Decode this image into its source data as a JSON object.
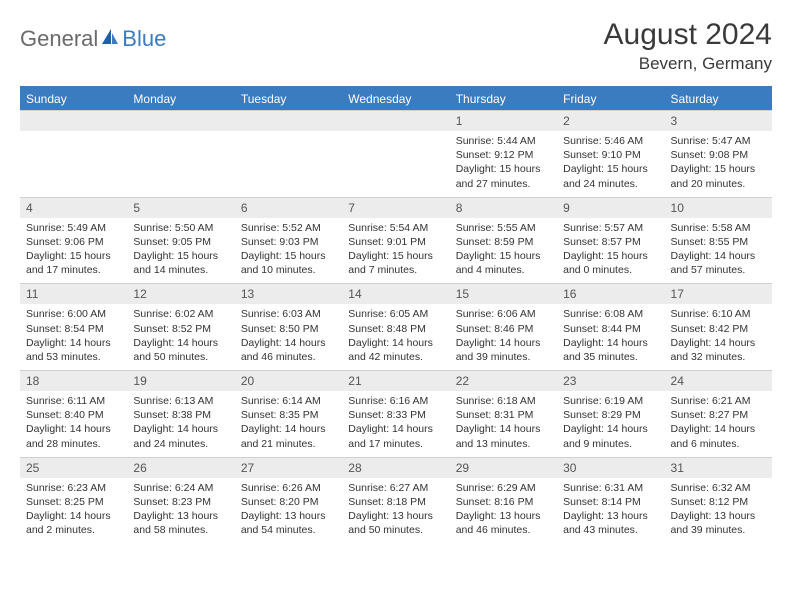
{
  "brand": {
    "text1": "General",
    "text2": "Blue"
  },
  "colors": {
    "accent": "#3b7bbf",
    "header_bg": "#3b7bbf",
    "num_bg": "#ececec",
    "text": "#333333"
  },
  "title": "August 2024",
  "location": "Bevern, Germany",
  "weekdays": [
    "Sunday",
    "Monday",
    "Tuesday",
    "Wednesday",
    "Thursday",
    "Friday",
    "Saturday"
  ],
  "weeks": [
    [
      null,
      null,
      null,
      null,
      {
        "n": "1",
        "sr": "Sunrise: 5:44 AM",
        "ss": "Sunset: 9:12 PM",
        "d1": "Daylight: 15 hours",
        "d2": "and 27 minutes."
      },
      {
        "n": "2",
        "sr": "Sunrise: 5:46 AM",
        "ss": "Sunset: 9:10 PM",
        "d1": "Daylight: 15 hours",
        "d2": "and 24 minutes."
      },
      {
        "n": "3",
        "sr": "Sunrise: 5:47 AM",
        "ss": "Sunset: 9:08 PM",
        "d1": "Daylight: 15 hours",
        "d2": "and 20 minutes."
      }
    ],
    [
      {
        "n": "4",
        "sr": "Sunrise: 5:49 AM",
        "ss": "Sunset: 9:06 PM",
        "d1": "Daylight: 15 hours",
        "d2": "and 17 minutes."
      },
      {
        "n": "5",
        "sr": "Sunrise: 5:50 AM",
        "ss": "Sunset: 9:05 PM",
        "d1": "Daylight: 15 hours",
        "d2": "and 14 minutes."
      },
      {
        "n": "6",
        "sr": "Sunrise: 5:52 AM",
        "ss": "Sunset: 9:03 PM",
        "d1": "Daylight: 15 hours",
        "d2": "and 10 minutes."
      },
      {
        "n": "7",
        "sr": "Sunrise: 5:54 AM",
        "ss": "Sunset: 9:01 PM",
        "d1": "Daylight: 15 hours",
        "d2": "and 7 minutes."
      },
      {
        "n": "8",
        "sr": "Sunrise: 5:55 AM",
        "ss": "Sunset: 8:59 PM",
        "d1": "Daylight: 15 hours",
        "d2": "and 4 minutes."
      },
      {
        "n": "9",
        "sr": "Sunrise: 5:57 AM",
        "ss": "Sunset: 8:57 PM",
        "d1": "Daylight: 15 hours",
        "d2": "and 0 minutes."
      },
      {
        "n": "10",
        "sr": "Sunrise: 5:58 AM",
        "ss": "Sunset: 8:55 PM",
        "d1": "Daylight: 14 hours",
        "d2": "and 57 minutes."
      }
    ],
    [
      {
        "n": "11",
        "sr": "Sunrise: 6:00 AM",
        "ss": "Sunset: 8:54 PM",
        "d1": "Daylight: 14 hours",
        "d2": "and 53 minutes."
      },
      {
        "n": "12",
        "sr": "Sunrise: 6:02 AM",
        "ss": "Sunset: 8:52 PM",
        "d1": "Daylight: 14 hours",
        "d2": "and 50 minutes."
      },
      {
        "n": "13",
        "sr": "Sunrise: 6:03 AM",
        "ss": "Sunset: 8:50 PM",
        "d1": "Daylight: 14 hours",
        "d2": "and 46 minutes."
      },
      {
        "n": "14",
        "sr": "Sunrise: 6:05 AM",
        "ss": "Sunset: 8:48 PM",
        "d1": "Daylight: 14 hours",
        "d2": "and 42 minutes."
      },
      {
        "n": "15",
        "sr": "Sunrise: 6:06 AM",
        "ss": "Sunset: 8:46 PM",
        "d1": "Daylight: 14 hours",
        "d2": "and 39 minutes."
      },
      {
        "n": "16",
        "sr": "Sunrise: 6:08 AM",
        "ss": "Sunset: 8:44 PM",
        "d1": "Daylight: 14 hours",
        "d2": "and 35 minutes."
      },
      {
        "n": "17",
        "sr": "Sunrise: 6:10 AM",
        "ss": "Sunset: 8:42 PM",
        "d1": "Daylight: 14 hours",
        "d2": "and 32 minutes."
      }
    ],
    [
      {
        "n": "18",
        "sr": "Sunrise: 6:11 AM",
        "ss": "Sunset: 8:40 PM",
        "d1": "Daylight: 14 hours",
        "d2": "and 28 minutes."
      },
      {
        "n": "19",
        "sr": "Sunrise: 6:13 AM",
        "ss": "Sunset: 8:38 PM",
        "d1": "Daylight: 14 hours",
        "d2": "and 24 minutes."
      },
      {
        "n": "20",
        "sr": "Sunrise: 6:14 AM",
        "ss": "Sunset: 8:35 PM",
        "d1": "Daylight: 14 hours",
        "d2": "and 21 minutes."
      },
      {
        "n": "21",
        "sr": "Sunrise: 6:16 AM",
        "ss": "Sunset: 8:33 PM",
        "d1": "Daylight: 14 hours",
        "d2": "and 17 minutes."
      },
      {
        "n": "22",
        "sr": "Sunrise: 6:18 AM",
        "ss": "Sunset: 8:31 PM",
        "d1": "Daylight: 14 hours",
        "d2": "and 13 minutes."
      },
      {
        "n": "23",
        "sr": "Sunrise: 6:19 AM",
        "ss": "Sunset: 8:29 PM",
        "d1": "Daylight: 14 hours",
        "d2": "and 9 minutes."
      },
      {
        "n": "24",
        "sr": "Sunrise: 6:21 AM",
        "ss": "Sunset: 8:27 PM",
        "d1": "Daylight: 14 hours",
        "d2": "and 6 minutes."
      }
    ],
    [
      {
        "n": "25",
        "sr": "Sunrise: 6:23 AM",
        "ss": "Sunset: 8:25 PM",
        "d1": "Daylight: 14 hours",
        "d2": "and 2 minutes."
      },
      {
        "n": "26",
        "sr": "Sunrise: 6:24 AM",
        "ss": "Sunset: 8:23 PM",
        "d1": "Daylight: 13 hours",
        "d2": "and 58 minutes."
      },
      {
        "n": "27",
        "sr": "Sunrise: 6:26 AM",
        "ss": "Sunset: 8:20 PM",
        "d1": "Daylight: 13 hours",
        "d2": "and 54 minutes."
      },
      {
        "n": "28",
        "sr": "Sunrise: 6:27 AM",
        "ss": "Sunset: 8:18 PM",
        "d1": "Daylight: 13 hours",
        "d2": "and 50 minutes."
      },
      {
        "n": "29",
        "sr": "Sunrise: 6:29 AM",
        "ss": "Sunset: 8:16 PM",
        "d1": "Daylight: 13 hours",
        "d2": "and 46 minutes."
      },
      {
        "n": "30",
        "sr": "Sunrise: 6:31 AM",
        "ss": "Sunset: 8:14 PM",
        "d1": "Daylight: 13 hours",
        "d2": "and 43 minutes."
      },
      {
        "n": "31",
        "sr": "Sunrise: 6:32 AM",
        "ss": "Sunset: 8:12 PM",
        "d1": "Daylight: 13 hours",
        "d2": "and 39 minutes."
      }
    ]
  ]
}
